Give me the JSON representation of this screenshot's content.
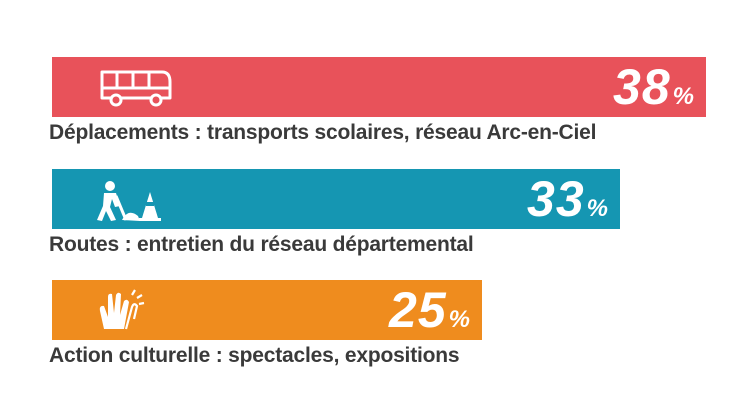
{
  "chart_data": {
    "type": "bar",
    "orientation": "horizontal",
    "unit": "%",
    "categories": [
      "Déplacements : transports scolaires, réseau Arc-en-Ciel",
      "Routes : entretien du réseau départemental",
      "Action culturelle : spectacles, expositions"
    ],
    "values": [
      38,
      33,
      25
    ],
    "value_labels": [
      "38",
      "33",
      "25"
    ],
    "percent_sign": "%",
    "colors": [
      "#e8525a",
      "#1596b2",
      "#ef8c1e"
    ],
    "icons": [
      "bus-icon",
      "roadworker-icon",
      "clapping-hands-icon"
    ],
    "grid": false,
    "legend": "none"
  }
}
